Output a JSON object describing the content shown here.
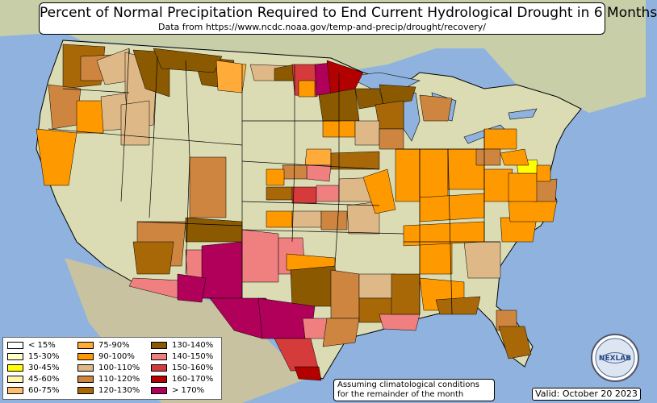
{
  "title": "Percent of Normal Precipitation Required to End Current Hydrological Drought in 6 Months",
  "subtitle": "Data from https://www.ncdc.noaa.gov/temp-and-precip/drought/recovery/",
  "legend": [
    {
      "label": "< 15%",
      "color": "#ffffff"
    },
    {
      "label": "15-30%",
      "color": "#ffffcc"
    },
    {
      "label": "30-45%",
      "color": "#ffff00"
    },
    {
      "label": "45-60%",
      "color": "#fff4b0"
    },
    {
      "label": "60-75%",
      "color": "#fdbf6f"
    },
    {
      "label": "75-90%",
      "color": "#feab3a"
    },
    {
      "label": "90-100%",
      "color": "#ff9900"
    },
    {
      "label": "100-110%",
      "color": "#deb887"
    },
    {
      "label": "110-120%",
      "color": "#cd853f"
    },
    {
      "label": "120-130%",
      "color": "#a86808"
    },
    {
      "label": "130-140%",
      "color": "#8b5a00"
    },
    {
      "label": "140-150%",
      "color": "#f08080"
    },
    {
      "label": "150-160%",
      "color": "#d63b3b"
    },
    {
      "label": "160-170%",
      "color": "#b30000"
    },
    {
      "label": "> 170%",
      "color": "#b0005a"
    }
  ],
  "note_line1": "Assuming climatological conditions",
  "note_line2": "for the remainder of the month",
  "valid": "Valid: October 20 2023",
  "logo_text": "NEXLAB",
  "colors": {
    "ocean": "#8fb3de",
    "land": "#dcdcb4",
    "state_border": "#000000"
  }
}
